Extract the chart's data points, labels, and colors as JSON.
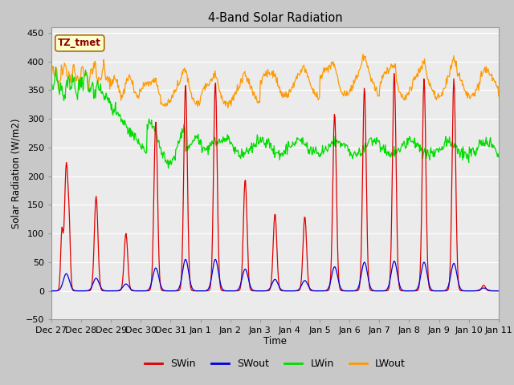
{
  "title": "4-Band Solar Radiation",
  "ylabel": "Solar Radiation (W/m2)",
  "xlabel": "Time",
  "annotation": "TZ_tmet",
  "ylim": [
    -50,
    460
  ],
  "tick_labels": [
    "Dec 27",
    "Dec 28",
    "Dec 29",
    "Dec 30",
    "Dec 31",
    "Jan 1",
    "Jan 2",
    "Jan 3",
    "Jan 4",
    "Jan 5",
    "Jan 6",
    "Jan 7",
    "Jan 8",
    "Jan 9",
    "Jan 10",
    "Jan 11"
  ],
  "colors": {
    "SWin": "#dd0000",
    "SWout": "#0000dd",
    "LWin": "#00dd00",
    "LWout": "#ff9900"
  },
  "bg_color": "#e8e8e8",
  "plot_bg": "#ebebeb",
  "grid_color": "#ffffff"
}
